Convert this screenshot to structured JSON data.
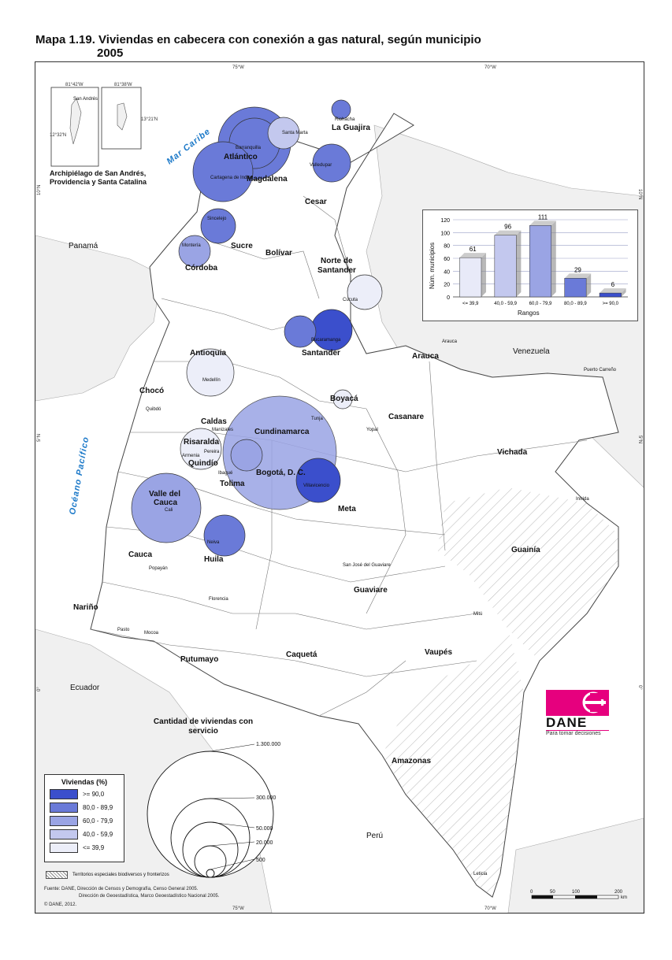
{
  "title": {
    "line1": "Mapa 1.19. Viviendas en cabecera con conexión a gas natural, según municipio",
    "line2": "2005"
  },
  "coords": {
    "top_75": "75°W",
    "top_70": "70°W",
    "bot_75": "75°W",
    "bot_70": "70°W",
    "left_10": "10°N",
    "left_5": "5°N",
    "right_10": "10°N",
    "right_5": "5°N",
    "left_0": "0°",
    "right_0": "0°"
  },
  "inset": {
    "lon1": "81°42'W",
    "lon2": "81°38'W",
    "lat1": "12°32'N",
    "lat2": "13°21'N",
    "label1": "San Andrés",
    "caption": "Archipiélago de San Andrés, Providencia y Santa Catalina"
  },
  "seas": {
    "caribe": "Mar Caribe",
    "pacifico": "Océano Pacífico"
  },
  "countries": {
    "panama": "Panamá",
    "venezuela": "Venezuela",
    "ecuador": "Ecuador",
    "peru": "Perú"
  },
  "departments": [
    "La Guajira",
    "Atlántico",
    "Magdalena",
    "Cesar",
    "Sucre",
    "Bolívar",
    "Córdoba",
    "Norte de Santander",
    "Santander",
    "Arauca",
    "Antioquia",
    "Chocó",
    "Boyacá",
    "Casanare",
    "Caldas",
    "Risaralda",
    "Cundinamarca",
    "Quindío",
    "Bogotá, D. C.",
    "Tolima",
    "Vichada",
    "Valle del Cauca",
    "Meta",
    "Guainía",
    "Cauca",
    "Huila",
    "Guaviare",
    "Nariño",
    "Caquetá",
    "Vaupés",
    "Putumayo",
    "Amazonas"
  ],
  "capitals": [
    "Riohacha",
    "Santa Marta",
    "Barranquilla",
    "Valledupar",
    "Cartagena de Indias",
    "Sincelejo",
    "Montería",
    "Cúcuta",
    "Bucaramanga",
    "Arauca",
    "Medellín",
    "Quibdó",
    "Tunja",
    "Yopal",
    "Manizales",
    "Pereira",
    "Armenia",
    "Ibagué",
    "Villavicencio",
    "Puerto Carreño",
    "Cali",
    "Inírida",
    "Neiva",
    "Popayán",
    "San José del Guaviare",
    "Florencia",
    "Mitú",
    "Pasto",
    "Mocoa",
    "Leticia"
  ],
  "chart_data": {
    "type": "bar",
    "categories": [
      "<= 39,9",
      "40,0 - 59,9",
      "60,0 - 79,9",
      "80,0 - 89,9",
      ">= 90,0"
    ],
    "values": [
      61,
      96,
      111,
      29,
      6
    ],
    "xlabel": "Rangos",
    "ylabel": "Núm. municipios",
    "ylim": [
      0,
      120
    ],
    "yticks": [
      "0",
      "20",
      "40",
      "60",
      "80",
      "100",
      "120"
    ],
    "colors": [
      "#e8eaf8",
      "#c3c8ee",
      "#9aa4e4",
      "#6a7ad8",
      "#3b4fcc"
    ]
  },
  "size_legend": {
    "title": "Cantidad de viviendas con servicio",
    "values": [
      "1.300.000",
      "300.000",
      "50.000",
      "20.000",
      "500"
    ]
  },
  "legend": {
    "title": "Viviendas (%)",
    "items": [
      {
        "label": ">= 90,0",
        "color": "#3b4fcc"
      },
      {
        "label": "80,0 - 89,9",
        "color": "#6a7ad8"
      },
      {
        "label": "60,0 - 79,9",
        "color": "#9aa4e4"
      },
      {
        "label": "40,0 - 59,9",
        "color": "#c3c8ee"
      },
      {
        "label": "<= 39,9",
        "color": "#eceef9"
      }
    ]
  },
  "special_territories": "Territorios especiales biodiversos y fronterizos",
  "footer": {
    "source1": "Fuente: DANE, Dirección de Censos y Demografía, Censo General 2005.",
    "source2": "Dirección de Geoestadística, Marco Geoestadístico Nacional 2005.",
    "copyright": "© DANE, 2012."
  },
  "scale": {
    "ticks": [
      "0",
      "50",
      "100",
      "200"
    ],
    "unit": "km"
  },
  "dane": {
    "name": "DANE",
    "tagline": "Para tomar decisiones"
  }
}
